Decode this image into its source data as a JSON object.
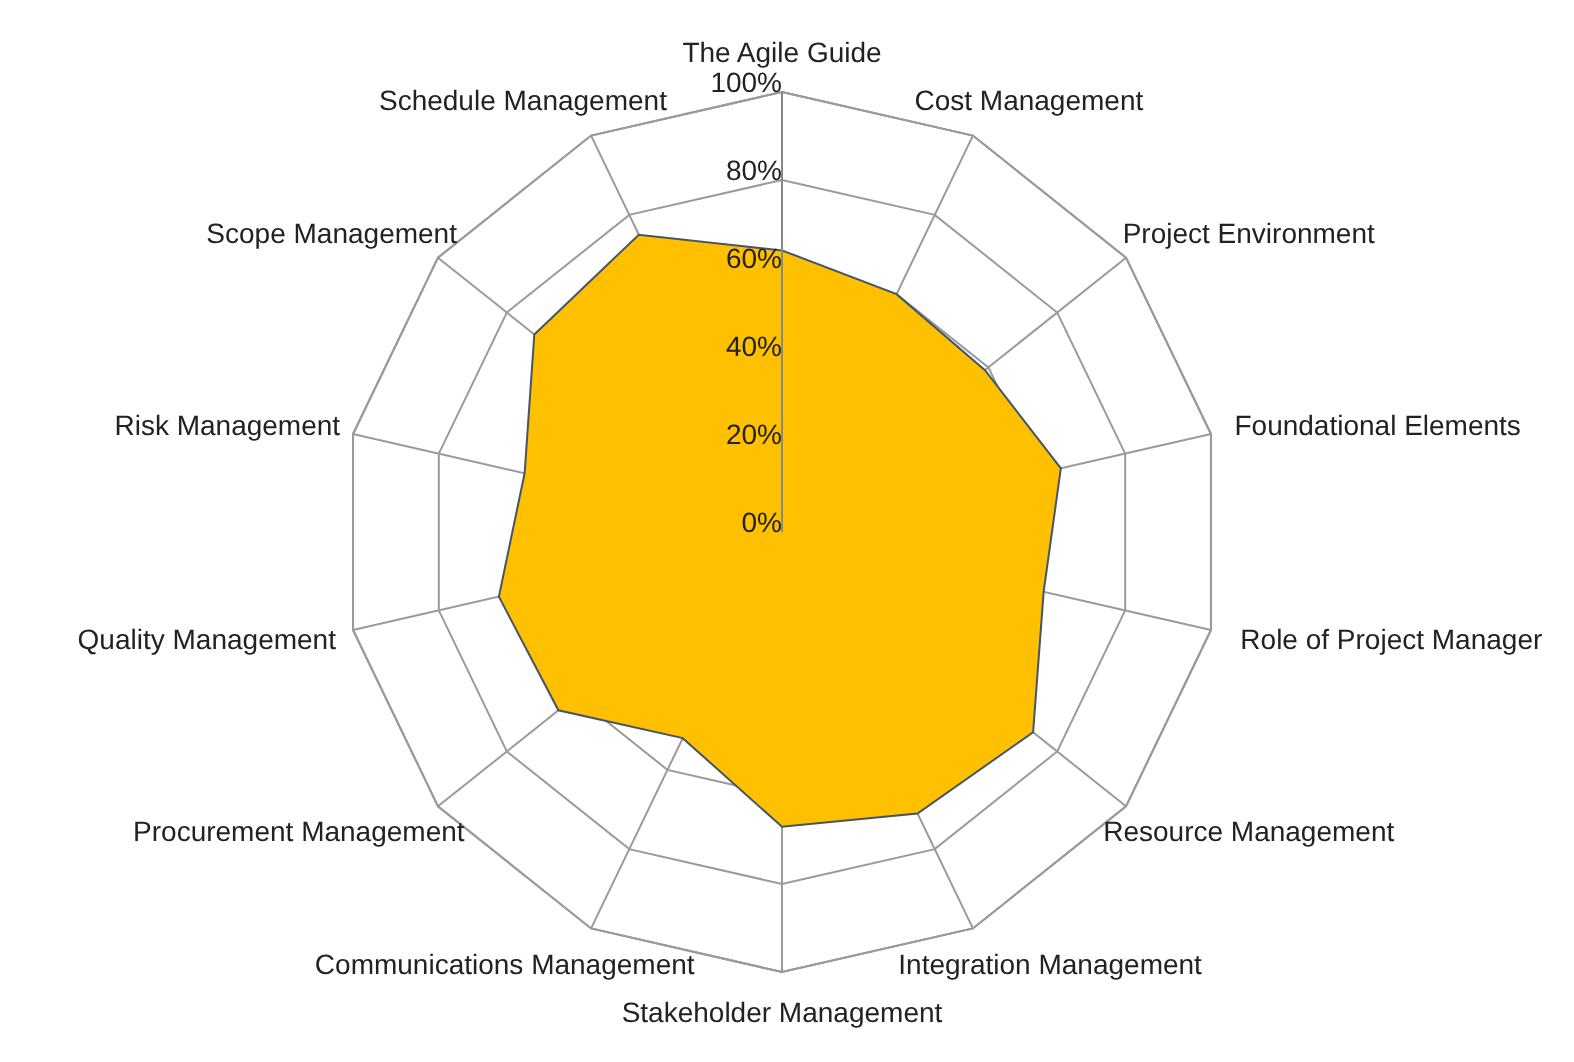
{
  "chart_data": {
    "type": "radar",
    "categories": [
      "The Agile Guide",
      "Cost Management",
      "Project Environment",
      "Foundational Elements",
      "Role of Project Manager",
      "Resource Management",
      "Integration Management",
      "Stakeholder Management",
      "Communications Management",
      "Procurement Management",
      "Quality Management",
      "Risk Management",
      "Scope Management",
      "Schedule Management"
    ],
    "series": [
      {
        "color": "#ffc000",
        "values": [
          64,
          60,
          59,
          65,
          61,
          73,
          71,
          67,
          52,
          65,
          66,
          60,
          72,
          75
        ]
      }
    ],
    "ylim": [
      0,
      100
    ],
    "yticks": [
      {
        "value": 0,
        "label": "0%"
      },
      {
        "value": 20,
        "label": "20%"
      },
      {
        "value": 40,
        "label": "40%"
      },
      {
        "value": 60,
        "label": "60%"
      },
      {
        "value": 80,
        "label": "80%"
      },
      {
        "value": 100,
        "label": "100%"
      }
    ],
    "grid": true
  }
}
